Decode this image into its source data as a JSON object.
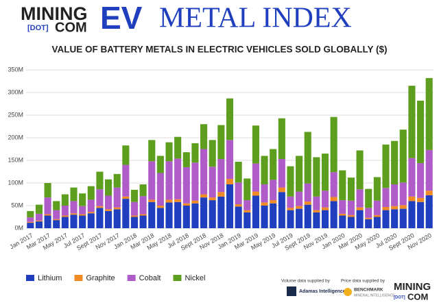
{
  "header": {
    "brand": "MINING",
    "dot": "[DOT]",
    "com": "COM",
    "ev": "EV",
    "index": "METAL INDEX"
  },
  "credits": {
    "volume": "Volume data supplied by",
    "volume_source": "Adamas Intelligence",
    "price": "Price data supplied by",
    "price_source": "BENCHMARK",
    "price_source_sub": "MINERAL INTELLIGENCE",
    "logo_brand": "MINING",
    "logo_dot": "[DOT]",
    "logo_com": "COM"
  },
  "chart_data": {
    "type": "stacked_bar",
    "title": "VALUE OF BATTERY METALS IN ELECTRIC VEHICLES SOLD GLOBALLY ($)",
    "categories": [
      "Jan 2017",
      null,
      "Mar 2017",
      null,
      "May 2017",
      null,
      "Jul 2017",
      null,
      "Sept 2017",
      null,
      "Nov 2017",
      null,
      "Jan 2018",
      null,
      "Mar 2018",
      null,
      "May 2018",
      null,
      "Jul 2018",
      null,
      "Sept 2018",
      null,
      "Nov 2018",
      null,
      "Jan 2019",
      null,
      "Mar 2019",
      null,
      "May 2019",
      null,
      "Jul 2019",
      null,
      "Sept 2019",
      null,
      "Nov 2019",
      null,
      "Jan 2020",
      null,
      "Mar 2020",
      null,
      "May 2020",
      null,
      "Jul 2020",
      null,
      "Sept 2020",
      null,
      "Nov 2020"
    ],
    "series": [
      {
        "name": "Lithium",
        "color": "#1f3fbf",
        "values": [
          12,
          15,
          28,
          18,
          25,
          30,
          28,
          33,
          45,
          38,
          42,
          65,
          25,
          28,
          58,
          45,
          57,
          58,
          50,
          55,
          68,
          62,
          70,
          97,
          48,
          35,
          72,
          50,
          55,
          80,
          40,
          43,
          52,
          35,
          40,
          60,
          28,
          25,
          40,
          20,
          25,
          40,
          42,
          43,
          60,
          58,
          73
        ]
      },
      {
        "name": "Graphite",
        "color": "#f08a24",
        "values": [
          2,
          2,
          3,
          2,
          3,
          3,
          3,
          3,
          4,
          4,
          4,
          5,
          3,
          3,
          5,
          5,
          6,
          6,
          5,
          6,
          7,
          6,
          10,
          12,
          5,
          5,
          9,
          7,
          7,
          10,
          5,
          6,
          7,
          5,
          6,
          9,
          4,
          4,
          6,
          3,
          4,
          7,
          7,
          8,
          10,
          9,
          10
        ]
      },
      {
        "name": "Cobalt",
        "color": "#b05cc8",
        "values": [
          10,
          15,
          37,
          20,
          22,
          27,
          18,
          27,
          37,
          30,
          44,
          70,
          30,
          40,
          85,
          72,
          85,
          90,
          80,
          84,
          100,
          68,
          73,
          86,
          48,
          22,
          62,
          40,
          45,
          63,
          25,
          32,
          40,
          30,
          37,
          55,
          30,
          32,
          40,
          22,
          32,
          42,
          48,
          50,
          85,
          77,
          90
        ]
      },
      {
        "name": "Nickel",
        "color": "#5e9e1e",
        "values": [
          14,
          20,
          32,
          20,
          25,
          30,
          28,
          30,
          39,
          36,
          30,
          43,
          27,
          26,
          47,
          38,
          42,
          48,
          33,
          43,
          55,
          59,
          75,
          92,
          46,
          48,
          84,
          63,
          68,
          90,
          67,
          79,
          114,
          87,
          82,
          122,
          66,
          51,
          86,
          42,
          52,
          96,
          96,
          117,
          160,
          138,
          159
        ]
      }
    ],
    "ylim": [
      0,
      350
    ],
    "yticks": [
      {
        "value": 0,
        "label": "0M"
      },
      {
        "value": 50,
        "label": "50M"
      },
      {
        "value": 100,
        "label": "100M"
      },
      {
        "value": 150,
        "label": "150M"
      },
      {
        "value": 200,
        "label": "200M"
      },
      {
        "value": 250,
        "label": "250M"
      },
      {
        "value": 300,
        "label": "300M"
      },
      {
        "value": 350,
        "label": "350M"
      }
    ],
    "grid": true
  }
}
